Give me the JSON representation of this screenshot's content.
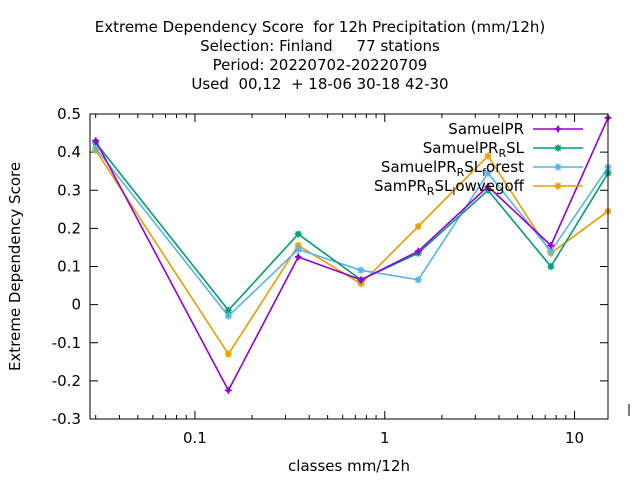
{
  "chart_data": {
    "type": "line",
    "title_lines": [
      "Extreme Dependency Score  for 12h Precipitation (mm/12h)",
      "Selection: Finland     77 stations",
      "Period: 20220702-20220709",
      "Used  00,12  + 18-06 30-18 42-30"
    ],
    "xlabel": "classes mm/12h",
    "ylabel": "Extreme Dependency Score",
    "x_scale": "log",
    "xlim": [
      0.028,
      15
    ],
    "ylim": [
      -0.3,
      0.5
    ],
    "x_ticks": [
      {
        "value": 0.1,
        "label": "0.1"
      },
      {
        "value": 1,
        "label": "1"
      },
      {
        "value": 10,
        "label": "10"
      }
    ],
    "y_ticks": [
      {
        "value": -0.3,
        "label": "-0.3"
      },
      {
        "value": -0.2,
        "label": "-0.2"
      },
      {
        "value": -0.1,
        "label": "-0.1"
      },
      {
        "value": 0,
        "label": "0"
      },
      {
        "value": 0.1,
        "label": "0.1"
      },
      {
        "value": 0.2,
        "label": "0.2"
      },
      {
        "value": 0.3,
        "label": "0.3"
      },
      {
        "value": 0.4,
        "label": "0.4"
      },
      {
        "value": 0.5,
        "label": "0.5"
      }
    ],
    "grid": false,
    "legend_position": "top-right",
    "x": [
      0.03,
      0.15,
      0.35,
      0.75,
      1.5,
      3.5,
      7.5,
      15
    ],
    "series": [
      {
        "name": "SamuelPR",
        "color": "#9400d3",
        "marker": "plus",
        "values": [
          0.43,
          -0.225,
          0.125,
          0.065,
          0.14,
          0.31,
          0.155,
          0.49
        ]
      },
      {
        "name": "SamuelPR_RSL",
        "color": "#009e73",
        "marker": "star",
        "values": [
          0.425,
          -0.015,
          0.185,
          0.065,
          0.135,
          0.3,
          0.1,
          0.345
        ]
      },
      {
        "name": "SamuelPR_RSL_forest",
        "color": "#56b4e9",
        "marker": "star",
        "values": [
          0.41,
          -0.03,
          0.145,
          0.09,
          0.065,
          0.345,
          0.14,
          0.36
        ]
      },
      {
        "name": "SamPR_RSL_lowvegoff",
        "color": "#e69f00",
        "marker": "star",
        "values": [
          0.405,
          -0.13,
          0.155,
          0.055,
          0.205,
          0.39,
          0.135,
          0.245
        ]
      }
    ],
    "legend_entries": [
      {
        "text": "SamuelPR"
      },
      {
        "text": "SamuelPR",
        "sub": "R",
        "after": "SL"
      },
      {
        "text": "SamuelPR",
        "sub": "R",
        "after": "SL",
        "sub2": "f",
        "after2": "orest"
      },
      {
        "text": "SamPR",
        "sub": "R",
        "after": "SL",
        "sub2": "l",
        "after2": "owvegoff"
      }
    ]
  }
}
